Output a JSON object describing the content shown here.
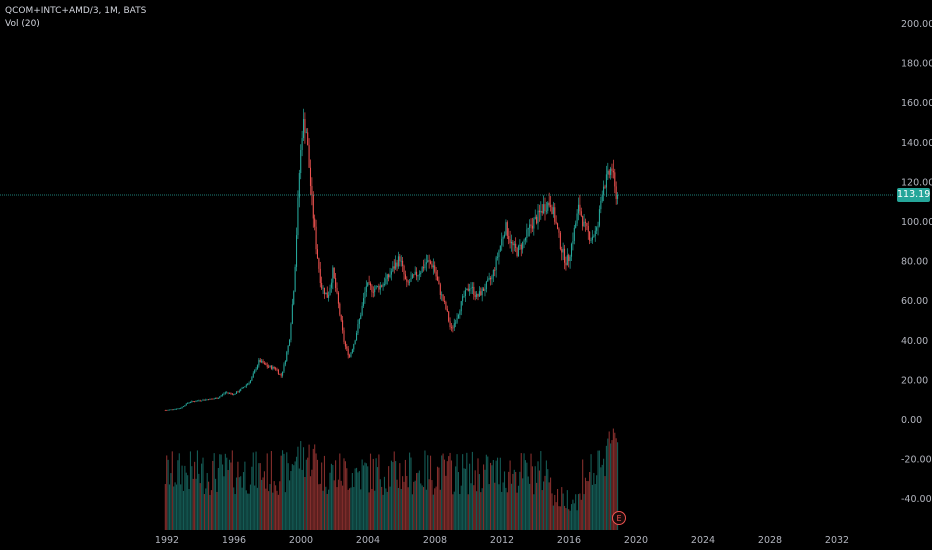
{
  "header": {
    "symbol_line": "QCOM+INTC+AMD/3, 1M, BATS",
    "indicator_label": "Vol (20)"
  },
  "price_badge": "113.19",
  "earnings_marker": "E",
  "colors": {
    "up": "#26a69a",
    "down": "#ef5350",
    "price_line": "#26a69a",
    "background": "#000000"
  },
  "chart_data": {
    "type": "candlestick",
    "interval": "monthly",
    "last_price": 113.19,
    "y_ticks": [
      "200.00",
      "180.00",
      "160.00",
      "140.00",
      "120.00",
      "100.00",
      "80.00",
      "60.00",
      "40.00",
      "20.00",
      "0.00",
      "-20.00",
      "-40.00"
    ],
    "x_ticks": [
      "1992",
      "1996",
      "2000",
      "2004",
      "2008",
      "2012",
      "2016",
      "2020",
      "2024",
      "2028",
      "2032"
    ],
    "ylim": [
      -50,
      210
    ],
    "price_keypoints": [
      [
        1992.0,
        5
      ],
      [
        1992.8,
        6
      ],
      [
        1993.3,
        9
      ],
      [
        1994.0,
        10
      ],
      [
        1995.0,
        11
      ],
      [
        1995.5,
        14
      ],
      [
        1996.0,
        13
      ],
      [
        1996.5,
        16
      ],
      [
        1997.0,
        20
      ],
      [
        1997.5,
        30
      ],
      [
        1998.0,
        27
      ],
      [
        1998.5,
        26
      ],
      [
        1998.8,
        22
      ],
      [
        1999.0,
        28
      ],
      [
        1999.3,
        40
      ],
      [
        1999.6,
        70
      ],
      [
        1999.9,
        125
      ],
      [
        2000.1,
        150
      ],
      [
        2000.3,
        148
      ],
      [
        2000.6,
        115
      ],
      [
        2000.9,
        88
      ],
      [
        2001.2,
        68
      ],
      [
        2001.6,
        62
      ],
      [
        2001.9,
        75
      ],
      [
        2002.2,
        60
      ],
      [
        2002.6,
        38
      ],
      [
        2002.9,
        32
      ],
      [
        2003.2,
        40
      ],
      [
        2003.6,
        55
      ],
      [
        2003.9,
        68
      ],
      [
        2004.3,
        66
      ],
      [
        2004.8,
        68
      ],
      [
        2005.2,
        72
      ],
      [
        2005.6,
        78
      ],
      [
        2005.9,
        82
      ],
      [
        2006.3,
        68
      ],
      [
        2006.7,
        72
      ],
      [
        2007.1,
        75
      ],
      [
        2007.5,
        80
      ],
      [
        2007.9,
        78
      ],
      [
        2008.3,
        65
      ],
      [
        2008.7,
        55
      ],
      [
        2008.95,
        45
      ],
      [
        2009.3,
        52
      ],
      [
        2009.7,
        62
      ],
      [
        2010.1,
        68
      ],
      [
        2010.5,
        62
      ],
      [
        2010.9,
        66
      ],
      [
        2011.4,
        72
      ],
      [
        2011.8,
        85
      ],
      [
        2012.2,
        98
      ],
      [
        2012.6,
        88
      ],
      [
        2012.9,
        85
      ],
      [
        2013.3,
        90
      ],
      [
        2013.7,
        98
      ],
      [
        2014.1,
        102
      ],
      [
        2014.5,
        108
      ],
      [
        2014.9,
        110
      ],
      [
        2015.2,
        100
      ],
      [
        2015.5,
        88
      ],
      [
        2015.8,
        80
      ],
      [
        2016.0,
        82
      ],
      [
        2016.3,
        95
      ],
      [
        2016.6,
        108
      ],
      [
        2016.9,
        98
      ],
      [
        2017.3,
        92
      ],
      [
        2017.7,
        96
      ],
      [
        2018.0,
        118
      ],
      [
        2018.3,
        122
      ],
      [
        2018.55,
        128
      ],
      [
        2018.75,
        115
      ],
      [
        2018.92,
        113.19
      ]
    ],
    "volume_note": "Vol (20) histogram shown beneath price series",
    "grid": false,
    "legend": "none"
  }
}
